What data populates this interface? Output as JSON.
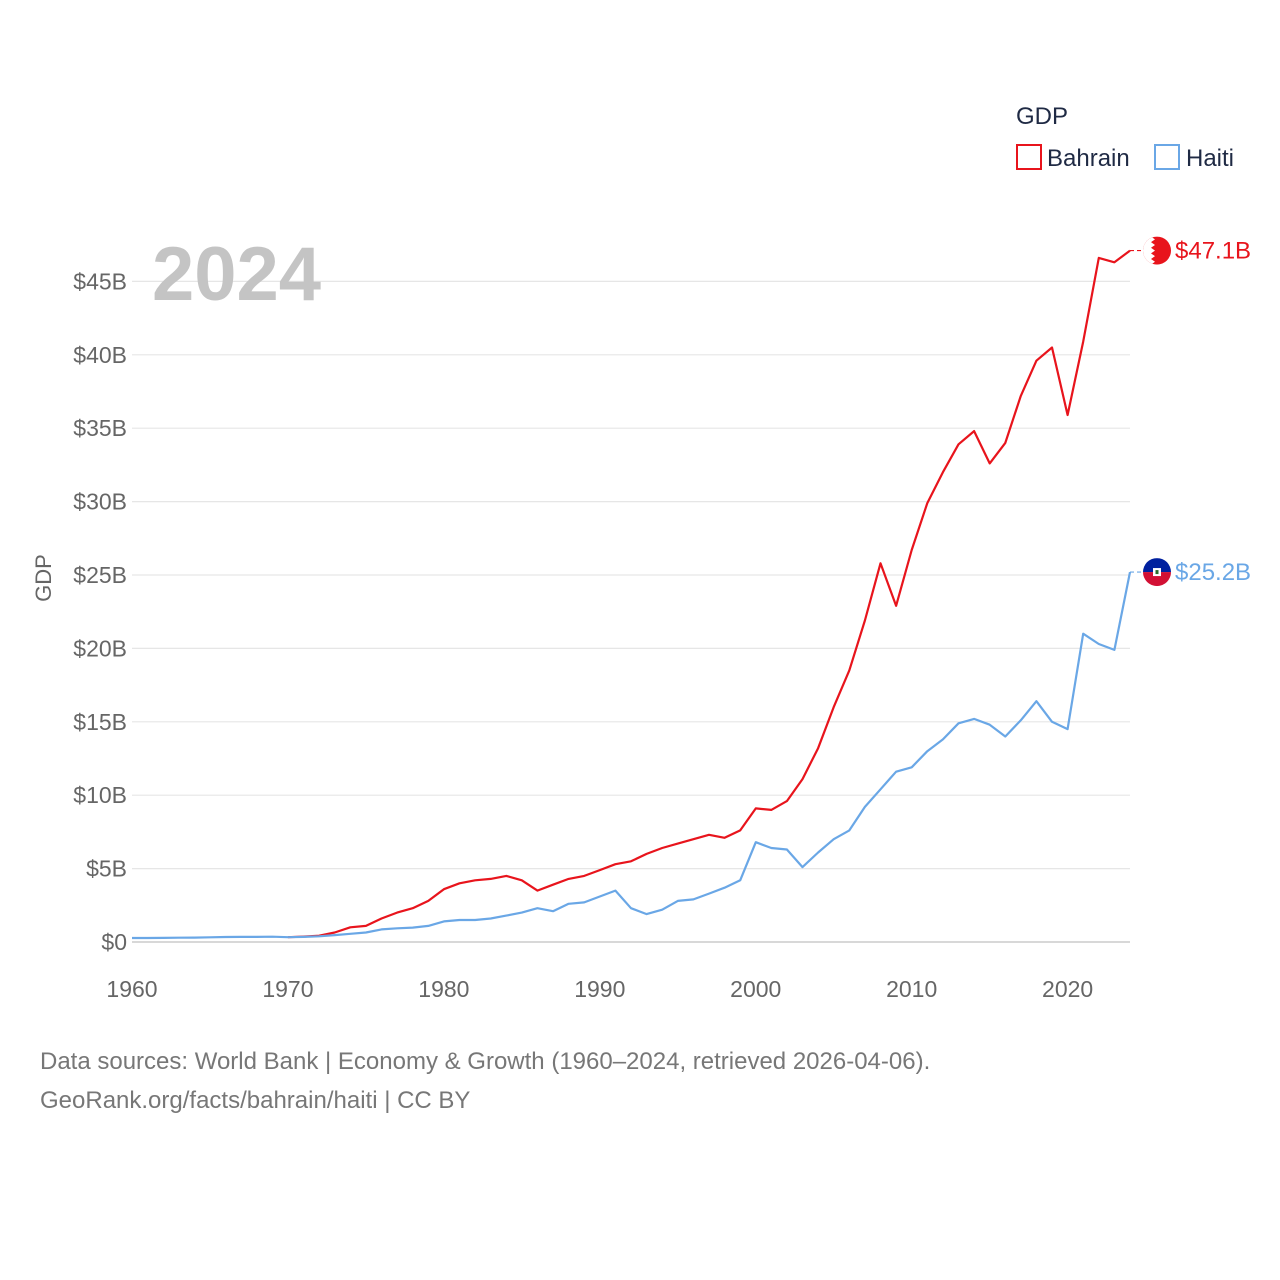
{
  "chart_data": {
    "type": "line",
    "title": "2024",
    "ylabel": "GDP",
    "xlabel": "",
    "xlim": [
      1960,
      2024
    ],
    "ylim": [
      0,
      48
    ],
    "x_ticks": [
      1960,
      1970,
      1980,
      1990,
      2000,
      2010,
      2020
    ],
    "y_ticks": [
      0,
      5,
      10,
      15,
      20,
      25,
      30,
      35,
      40,
      45
    ],
    "y_tick_labels": [
      "$0",
      "$5B",
      "$10B",
      "$15B",
      "$20B",
      "$25B",
      "$30B",
      "$35B",
      "$40B",
      "$45B"
    ],
    "legend": {
      "title": "GDP",
      "placement": "top-right",
      "items": [
        "Bahrain",
        "Haiti"
      ]
    },
    "series": [
      {
        "name": "Bahrain",
        "color": "#e8141c",
        "end_label": "$47.1B",
        "flag": "bahrain-flag",
        "x": [
          1970,
          1971,
          1972,
          1973,
          1974,
          1975,
          1976,
          1977,
          1978,
          1979,
          1980,
          1981,
          1982,
          1983,
          1984,
          1985,
          1986,
          1987,
          1988,
          1989,
          1990,
          1991,
          1992,
          1993,
          1994,
          1995,
          1996,
          1997,
          1998,
          1999,
          2000,
          2001,
          2002,
          2003,
          2004,
          2005,
          2006,
          2007,
          2008,
          2009,
          2010,
          2011,
          2012,
          2013,
          2014,
          2015,
          2016,
          2017,
          2018,
          2019,
          2020,
          2021,
          2022,
          2023,
          2024
        ],
        "values": [
          0.33,
          0.37,
          0.43,
          0.65,
          1.0,
          1.1,
          1.6,
          2.0,
          2.3,
          2.8,
          3.6,
          4.0,
          4.2,
          4.3,
          4.5,
          4.2,
          3.5,
          3.9,
          4.3,
          4.5,
          4.9,
          5.3,
          5.5,
          6.0,
          6.4,
          6.7,
          7.0,
          7.3,
          7.1,
          7.6,
          9.1,
          9.0,
          9.6,
          11.1,
          13.2,
          16.0,
          18.5,
          21.9,
          25.8,
          22.9,
          26.7,
          29.9,
          32.0,
          33.9,
          34.8,
          32.6,
          34.0,
          37.2,
          39.6,
          40.5,
          35.9,
          40.9,
          46.6,
          46.3,
          47.1
        ]
      },
      {
        "name": "Haiti",
        "color": "#6aa7e6",
        "end_label": "$25.2B",
        "flag": "haiti-flag",
        "x": [
          1960,
          1961,
          1962,
          1963,
          1964,
          1965,
          1966,
          1967,
          1968,
          1969,
          1970,
          1971,
          1972,
          1973,
          1974,
          1975,
          1976,
          1977,
          1978,
          1979,
          1980,
          1981,
          1982,
          1983,
          1984,
          1985,
          1986,
          1987,
          1988,
          1989,
          1990,
          1991,
          1992,
          1993,
          1994,
          1995,
          1996,
          1997,
          1998,
          1999,
          2000,
          2001,
          2002,
          2003,
          2004,
          2005,
          2006,
          2007,
          2008,
          2009,
          2010,
          2011,
          2012,
          2013,
          2014,
          2015,
          2016,
          2017,
          2018,
          2019,
          2020,
          2021,
          2022,
          2023,
          2024
        ],
        "values": [
          0.27,
          0.27,
          0.28,
          0.29,
          0.3,
          0.32,
          0.34,
          0.35,
          0.35,
          0.36,
          0.33,
          0.35,
          0.39,
          0.47,
          0.56,
          0.65,
          0.86,
          0.93,
          0.98,
          1.1,
          1.4,
          1.5,
          1.5,
          1.6,
          1.8,
          2.0,
          2.3,
          2.1,
          2.6,
          2.7,
          3.1,
          3.5,
          2.3,
          1.9,
          2.2,
          2.8,
          2.9,
          3.3,
          3.7,
          4.2,
          6.8,
          6.4,
          6.3,
          5.1,
          6.1,
          7.0,
          7.6,
          9.2,
          10.4,
          11.6,
          11.9,
          13.0,
          13.8,
          14.9,
          15.2,
          14.8,
          14.0,
          15.1,
          16.4,
          15.0,
          14.5,
          21.0,
          20.3,
          19.9,
          25.2
        ]
      }
    ]
  },
  "footer": {
    "line1": "Data sources: World Bank | Economy & Growth (1960–2024, retrieved 2026-04-06).",
    "line2": "GeoRank.org/facts/bahrain/haiti | CC BY"
  }
}
